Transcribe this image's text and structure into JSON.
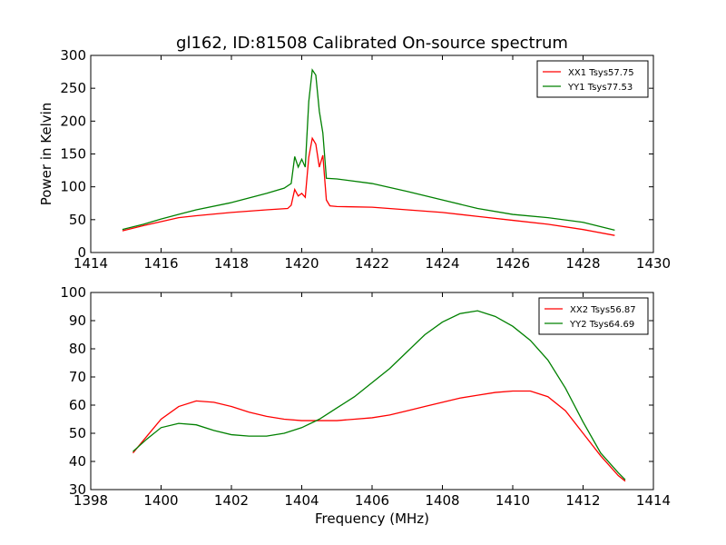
{
  "figure": {
    "title": "gl162, ID:81508 Calibrated On-source spectrum",
    "xlabel": "Frequency (MHz)"
  },
  "chart_data": [
    {
      "type": "line",
      "title": "gl162, ID:81508 Calibrated On-source spectrum",
      "xlabel": "",
      "ylabel": "Power in Kelvin",
      "xlim": [
        1414,
        1430
      ],
      "ylim": [
        0,
        300
      ],
      "xticks": [
        1414,
        1416,
        1418,
        1420,
        1422,
        1424,
        1426,
        1428,
        1430
      ],
      "yticks": [
        0,
        50,
        100,
        150,
        200,
        250,
        300
      ],
      "grid": false,
      "legend_position": "top-right",
      "series": [
        {
          "name": "XX1 Tsys57.75",
          "color": "#ff0000",
          "x": [
            1414.9,
            1415.5,
            1416.0,
            1416.5,
            1417.0,
            1418.0,
            1419.0,
            1419.6,
            1419.7,
            1419.8,
            1419.9,
            1420.0,
            1420.1,
            1420.2,
            1420.3,
            1420.4,
            1420.5,
            1420.6,
            1420.7,
            1420.8,
            1421.0,
            1422.0,
            1423.0,
            1424.0,
            1425.0,
            1426.0,
            1427.0,
            1428.0,
            1428.9
          ],
          "y": [
            33,
            41,
            47,
            53,
            56,
            61,
            65,
            67,
            72,
            96,
            86,
            90,
            84,
            145,
            174,
            165,
            130,
            148,
            80,
            71,
            70,
            69,
            65,
            61,
            55,
            49,
            43,
            35,
            26
          ]
        },
        {
          "name": "YY1 Tsys77.53",
          "color": "#008000",
          "x": [
            1414.9,
            1415.5,
            1416.0,
            1416.5,
            1417.0,
            1418.0,
            1419.0,
            1419.5,
            1419.7,
            1419.8,
            1419.9,
            1420.0,
            1420.1,
            1420.2,
            1420.3,
            1420.4,
            1420.5,
            1420.6,
            1420.7,
            1421.0,
            1422.0,
            1423.0,
            1424.0,
            1425.0,
            1426.0,
            1427.0,
            1428.0,
            1428.9
          ],
          "y": [
            35,
            43,
            51,
            58,
            65,
            76,
            90,
            98,
            105,
            146,
            130,
            142,
            130,
            230,
            278,
            270,
            215,
            182,
            113,
            112,
            105,
            93,
            80,
            67,
            58,
            53,
            46,
            34
          ]
        }
      ]
    },
    {
      "type": "line",
      "title": "",
      "xlabel": "Frequency (MHz)",
      "ylabel": "",
      "xlim": [
        1398,
        1414
      ],
      "ylim": [
        30,
        100
      ],
      "xticks": [
        1398,
        1400,
        1402,
        1404,
        1406,
        1408,
        1410,
        1412,
        1414
      ],
      "yticks": [
        30,
        40,
        50,
        60,
        70,
        80,
        90,
        100
      ],
      "grid": false,
      "legend_position": "top-right",
      "series": [
        {
          "name": "XX2 Tsys56.87",
          "color": "#ff0000",
          "x": [
            1399.2,
            1399.6,
            1400.0,
            1400.5,
            1401.0,
            1401.5,
            1402.0,
            1402.5,
            1403.0,
            1403.5,
            1404.0,
            1404.5,
            1405.0,
            1405.5,
            1406.0,
            1406.5,
            1407.0,
            1407.5,
            1408.0,
            1408.5,
            1409.0,
            1409.5,
            1410.0,
            1410.5,
            1411.0,
            1411.5,
            1412.0,
            1412.5,
            1413.0,
            1413.2
          ],
          "y": [
            43,
            49,
            55,
            59.5,
            61.5,
            61,
            59.5,
            57.5,
            56,
            55,
            54.5,
            54.5,
            54.5,
            55,
            55.5,
            56.5,
            58,
            59.5,
            61,
            62.5,
            63.5,
            64.5,
            65,
            65,
            63,
            58,
            50,
            42,
            35,
            33
          ]
        },
        {
          "name": "YY2 Tsys64.69",
          "color": "#008000",
          "x": [
            1399.2,
            1399.6,
            1400.0,
            1400.5,
            1401.0,
            1401.5,
            1402.0,
            1402.5,
            1403.0,
            1403.5,
            1404.0,
            1404.5,
            1405.0,
            1405.5,
            1406.0,
            1406.5,
            1407.0,
            1407.5,
            1408.0,
            1408.5,
            1409.0,
            1409.5,
            1410.0,
            1410.5,
            1411.0,
            1411.5,
            1412.0,
            1412.5,
            1413.0,
            1413.2
          ],
          "y": [
            43.5,
            48,
            52,
            53.5,
            53,
            51,
            49.5,
            49,
            49,
            50,
            52,
            55,
            59,
            63,
            68,
            73,
            79,
            85,
            89.5,
            92.5,
            93.5,
            91.5,
            88,
            83,
            76,
            66,
            54,
            43,
            36,
            33.5
          ]
        }
      ]
    }
  ]
}
